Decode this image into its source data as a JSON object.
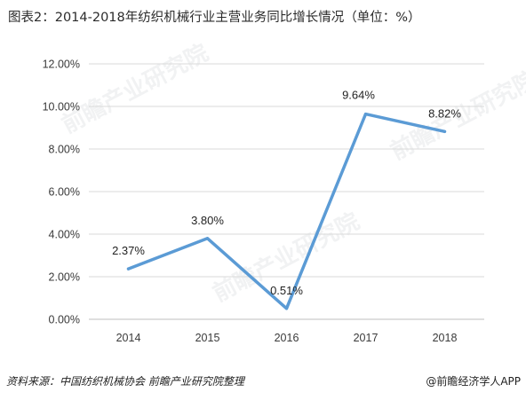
{
  "title": "图表2：2014-2018年纺织机械行业主营业务同比增长情况（单位：%）",
  "watermark_text": "前瞻产业研究院",
  "footer": {
    "source": "资料来源：中国纺织机械协会 前瞻产业研究院整理",
    "brand": "@前瞻经济学人APP"
  },
  "chart_data": {
    "type": "line",
    "title": "2014-2018年纺织机械行业主营业务同比增长情况（单位：%）",
    "categories": [
      "2014",
      "2015",
      "2016",
      "2017",
      "2018"
    ],
    "series": [
      {
        "values": [
          2.37,
          3.8,
          0.51,
          9.64,
          8.82
        ],
        "labels": [
          "2.37%",
          "3.80%",
          "0.51%",
          "9.64%",
          "8.82%"
        ],
        "color": "#5b9bd5"
      }
    ],
    "ylim": [
      0,
      12
    ],
    "yticks": [
      {
        "value": 0,
        "label": "0.00%"
      },
      {
        "value": 2,
        "label": "2.00%"
      },
      {
        "value": 4,
        "label": "4.00%"
      },
      {
        "value": 6,
        "label": "6.00%"
      },
      {
        "value": 8,
        "label": "8.00%"
      },
      {
        "value": 10,
        "label": "10.00%"
      },
      {
        "value": 12,
        "label": "12.00%"
      }
    ],
    "grid": true,
    "legend": "none",
    "xlabel": "",
    "ylabel": ""
  }
}
